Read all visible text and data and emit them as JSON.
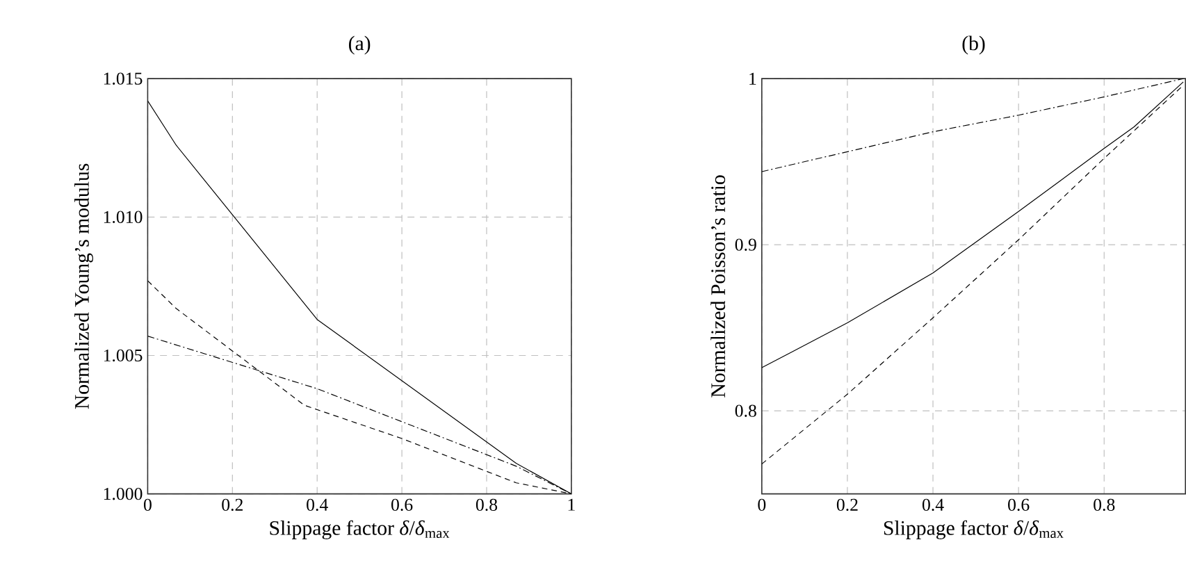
{
  "chart_data": [
    {
      "type": "line",
      "title": "(a)",
      "xlabel": "Slippage factor *δ*/*δ*$_{max}$",
      "ylabel": "Normalized Young’s modulus",
      "xlim": [
        0,
        1
      ],
      "ylim": [
        1.0,
        1.015
      ],
      "xticks": [
        0,
        0.2,
        0.4,
        0.6,
        0.8,
        1
      ],
      "yticks": [
        {
          "value": 1.0,
          "label": "1.000"
        },
        {
          "value": 1.005,
          "label": "1.005"
        },
        {
          "value": 1.01,
          "label": "1.010"
        },
        {
          "value": 1.015,
          "label": "1.015"
        }
      ],
      "grid": true,
      "series": [
        {
          "color": "#000000",
          "line_style": "solid",
          "x": [
            0,
            0.067,
            0.4,
            0.87,
            1
          ],
          "values": [
            1.0142,
            1.0126,
            1.0063,
            1.0011,
            1.0
          ]
        },
        {
          "color": "#000000",
          "line_style": "dashed",
          "x": [
            0,
            0.067,
            0.37,
            0.6,
            0.87,
            1
          ],
          "values": [
            1.0077,
            1.0067,
            1.0032,
            1.002,
            1.0004,
            1.0
          ]
        },
        {
          "color": "#000000",
          "line_style": "dashdot",
          "x": [
            0,
            0.4,
            0.87,
            1
          ],
          "values": [
            1.0057,
            1.0038,
            1.001,
            1.0
          ]
        }
      ]
    },
    {
      "type": "line",
      "title": "(b)",
      "xlabel": "Slippage factor *δ*/*δ*$_{max}$",
      "ylabel": "Normalized Poisson’s ratio",
      "xlim": [
        0,
        0.99
      ],
      "ylim": [
        0.75,
        1
      ],
      "xticks": [
        0,
        0.2,
        0.4,
        0.6,
        0.8
      ],
      "yticks": [
        0.8,
        0.9,
        1
      ],
      "grid": true,
      "series": [
        {
          "color": "#000000",
          "line_style": "solid",
          "x": [
            0,
            0.067,
            0.2,
            0.4,
            0.6,
            0.8,
            0.87,
            0.985
          ],
          "values": [
            0.826,
            0.835,
            0.853,
            0.883,
            0.92,
            0.958,
            0.971,
            0.998
          ]
        },
        {
          "color": "#000000",
          "line_style": "dashed",
          "x": [
            0,
            0.2,
            0.4,
            0.6,
            0.8,
            0.985
          ],
          "values": [
            0.768,
            0.81,
            0.856,
            0.903,
            0.952,
            0.996
          ]
        },
        {
          "color": "#000000",
          "line_style": "dashdot",
          "x": [
            0,
            0.4,
            0.6,
            0.8,
            0.985
          ],
          "values": [
            0.944,
            0.968,
            0.978,
            0.989,
            1.0
          ]
        }
      ]
    }
  ]
}
